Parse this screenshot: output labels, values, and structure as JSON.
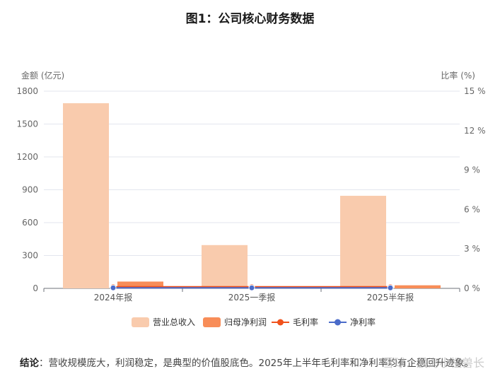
{
  "chart_data": {
    "type": "bar",
    "title": "图1：公司核心财务数据",
    "categories": [
      "2024年报",
      "2025一季报",
      "2025半年报"
    ],
    "left_axis": {
      "label": "金额 (亿元)",
      "ylim": [
        0,
        1800
      ],
      "ticks": [
        0,
        300,
        600,
        900,
        1200,
        1500,
        1800
      ]
    },
    "right_axis": {
      "label": "比率 (%)",
      "ylim": [
        0,
        15
      ],
      "ticks": [
        "0 %",
        "3 %",
        "6 %",
        "9 %",
        "12 %",
        "15 %"
      ]
    },
    "series": [
      {
        "name": "营业总收入",
        "type": "bar",
        "axis": "left",
        "color": "#f9cbad",
        "values": [
          1690,
          395,
          845
        ]
      },
      {
        "name": "归母净利润",
        "type": "bar",
        "axis": "left",
        "color": "#f88d58",
        "values": [
          62,
          12,
          28
        ]
      },
      {
        "name": "毛利率",
        "type": "line",
        "axis": "right",
        "color": "#f0521c",
        "values": [
          0.12,
          0.12,
          0.12
        ]
      },
      {
        "name": "净利率",
        "type": "line",
        "axis": "right",
        "color": "#4a6bc9",
        "values": [
          0.04,
          0.04,
          0.04
        ]
      }
    ],
    "grid": true,
    "legend_position": "bottom"
  },
  "conclusion": {
    "label": "结论",
    "text": "：营收规模庞大，利润稳定，是典型的价值股底色。2025年上半年毛利率和净利率均有企稳回升迹象。"
  },
  "watermark": "雪球：股海小怪兽长"
}
